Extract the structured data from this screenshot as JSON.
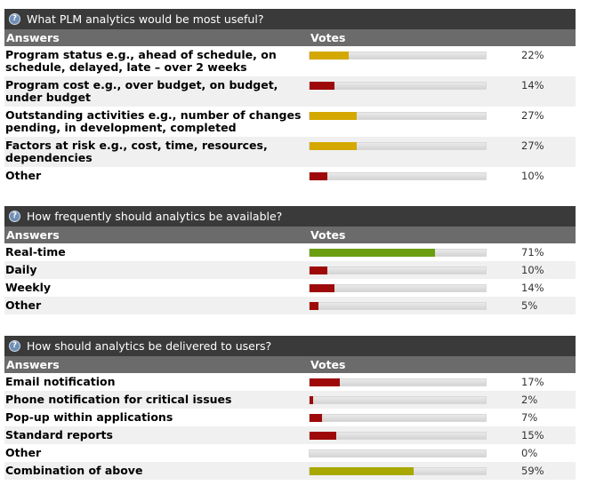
{
  "polls": [
    {
      "question": "What PLM analytics would be most useful?",
      "answers_header": "Answers",
      "votes_header": "Votes",
      "options": [
        {
          "label": "Program status e.g., ahead of schedule, on schedule, delayed, late – over 2 weeks",
          "percent_text": "22%",
          "percent": 22,
          "color": "#d4a800"
        },
        {
          "label": "Program cost e.g., over budget, on budget, under budget",
          "percent_text": "14%",
          "percent": 14,
          "color": "#9e0a0a"
        },
        {
          "label": "Outstanding activities e.g., number of changes pending, in development, completed",
          "percent_text": "27%",
          "percent": 27,
          "color": "#d4a800"
        },
        {
          "label": "Factors at risk e.g., cost, time, resources, dependencies",
          "percent_text": "27%",
          "percent": 27,
          "color": "#d4a800"
        },
        {
          "label": "Other",
          "percent_text": "10%",
          "percent": 10,
          "color": "#9e0a0a"
        }
      ]
    },
    {
      "question": "How frequently should analytics be available?",
      "answers_header": "Answers",
      "votes_header": "Votes",
      "options": [
        {
          "label": "Real-time",
          "percent_text": "71%",
          "percent": 71,
          "color": "#6a9e10"
        },
        {
          "label": "Daily",
          "percent_text": "10%",
          "percent": 10,
          "color": "#9e0a0a"
        },
        {
          "label": "Weekly",
          "percent_text": "14%",
          "percent": 14,
          "color": "#9e0a0a"
        },
        {
          "label": "Other",
          "percent_text": "5%",
          "percent": 5,
          "color": "#9e0a0a"
        }
      ]
    },
    {
      "question": "How should analytics be delivered to users?",
      "answers_header": "Answers",
      "votes_header": "Votes",
      "options": [
        {
          "label": "Email notification",
          "percent_text": "17%",
          "percent": 17,
          "color": "#9e0a0a"
        },
        {
          "label": "Phone notification for critical issues",
          "percent_text": "2%",
          "percent": 2,
          "color": "#9e0a0a"
        },
        {
          "label": "Pop-up within applications",
          "percent_text": "7%",
          "percent": 7,
          "color": "#9e0a0a"
        },
        {
          "label": "Standard reports",
          "percent_text": "15%",
          "percent": 15,
          "color": "#9e0a0a"
        },
        {
          "label": "Other",
          "percent_text": "0%",
          "percent": 0,
          "color": "#9e0a0a"
        },
        {
          "label": "Combination of above",
          "percent_text": "59%",
          "percent": 59,
          "color": "#a8a800"
        }
      ]
    }
  ],
  "icons": {
    "question": "help-icon"
  }
}
